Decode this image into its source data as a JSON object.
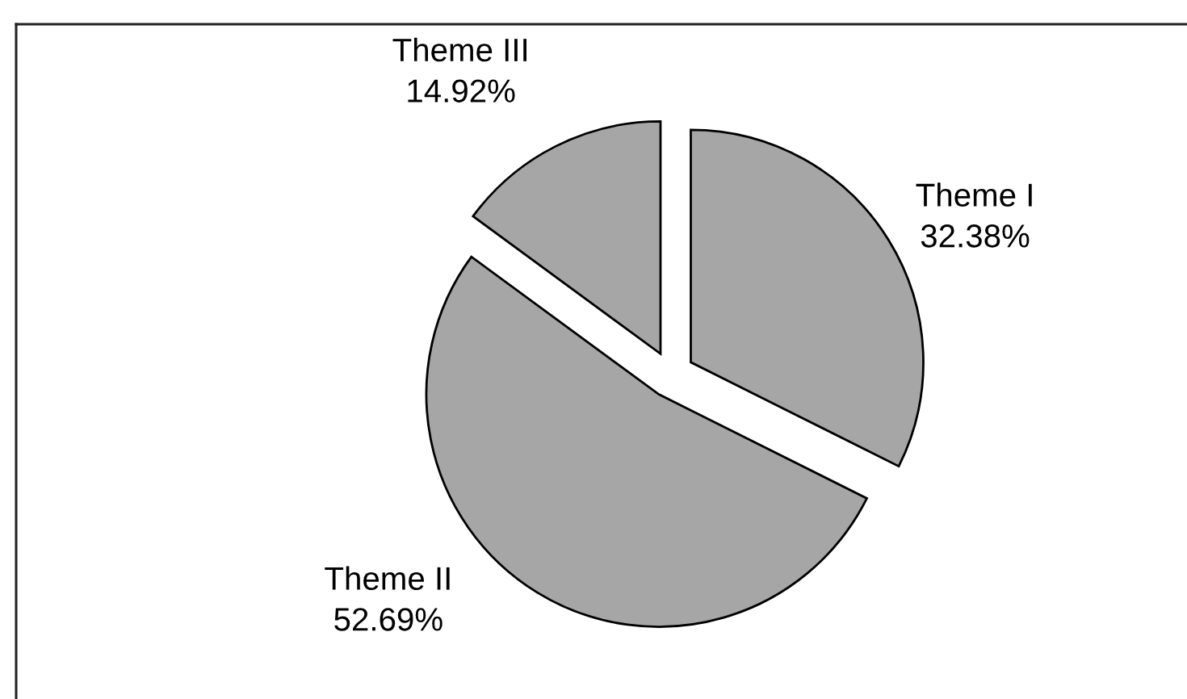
{
  "chart_data": {
    "type": "pie",
    "categories": [
      "Theme I",
      "Theme II",
      "Theme III"
    ],
    "values": [
      32.38,
      52.69,
      14.92
    ],
    "colors": [
      "#a6a6a6",
      "#a6a6a6",
      "#a6a6a6"
    ],
    "value_labels": [
      "32.38%",
      "52.69%",
      "14.92%"
    ]
  }
}
